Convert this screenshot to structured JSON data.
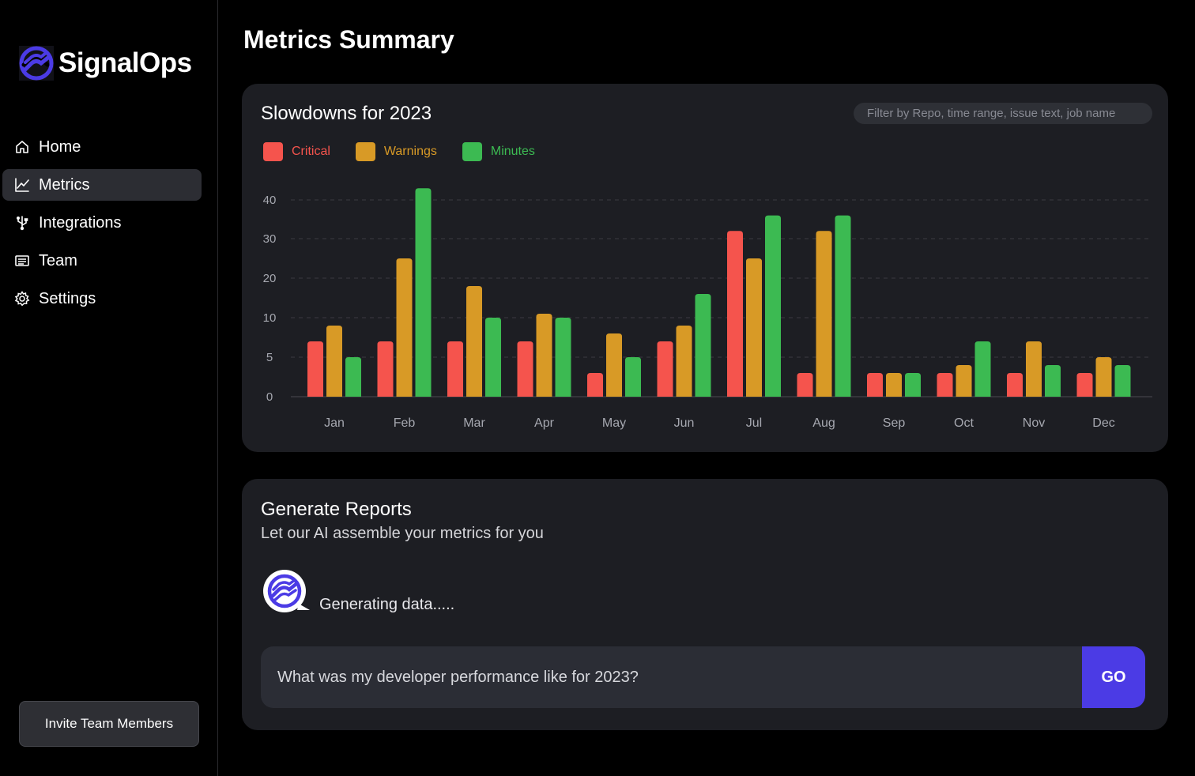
{
  "brand": {
    "name": "SignalOps"
  },
  "nav": {
    "items": [
      {
        "label": "Home",
        "icon": "home-icon"
      },
      {
        "label": "Metrics",
        "icon": "chart-line-icon",
        "active": true
      },
      {
        "label": "Integrations",
        "icon": "usb-plug-icon"
      },
      {
        "label": "Team",
        "icon": "list-card-icon"
      },
      {
        "label": "Settings",
        "icon": "gear-icon"
      }
    ]
  },
  "invite_label": "Invite Team Members",
  "page_title": "Metrics Summary",
  "chart_card": {
    "title": "Slowdowns for 2023",
    "filter_placeholder": "Filter by Repo, time range, issue text, job name"
  },
  "colors": {
    "critical": "#f5544d",
    "warnings": "#d89a26",
    "minutes": "#3cba52",
    "accent": "#4b3be5"
  },
  "chart_data": {
    "type": "bar",
    "title": "Slowdowns for 2023",
    "xlabel": "",
    "ylabel": "",
    "categories": [
      "Jan",
      "Feb",
      "Mar",
      "Apr",
      "May",
      "Jun",
      "Jul",
      "Aug",
      "Sep",
      "Oct",
      "Nov",
      "Dec"
    ],
    "series": [
      {
        "name": "Critical",
        "color": "#f5544d",
        "values": [
          7,
          7,
          7,
          7,
          3,
          7,
          32,
          3,
          3,
          3,
          3,
          3
        ]
      },
      {
        "name": "Warnings",
        "color": "#d89a26",
        "values": [
          9,
          25,
          18,
          11,
          8,
          9,
          25,
          32,
          3,
          4,
          7,
          5
        ]
      },
      {
        "name": "Minutes",
        "color": "#3cba52",
        "values": [
          5,
          43,
          10,
          10,
          5,
          16,
          36,
          36,
          3,
          7,
          4,
          4
        ]
      }
    ],
    "y_ticks": [
      0,
      5,
      10,
      20,
      30,
      40
    ],
    "ylim": [
      0,
      45
    ],
    "grid": true,
    "legend": "top-left"
  },
  "reports": {
    "title": "Generate Reports",
    "subtitle": "Let our AI assemble your metrics for you",
    "status": "Generating data.....",
    "prompt_value": "What was my developer performance like for 2023?",
    "go_label": "GO"
  }
}
